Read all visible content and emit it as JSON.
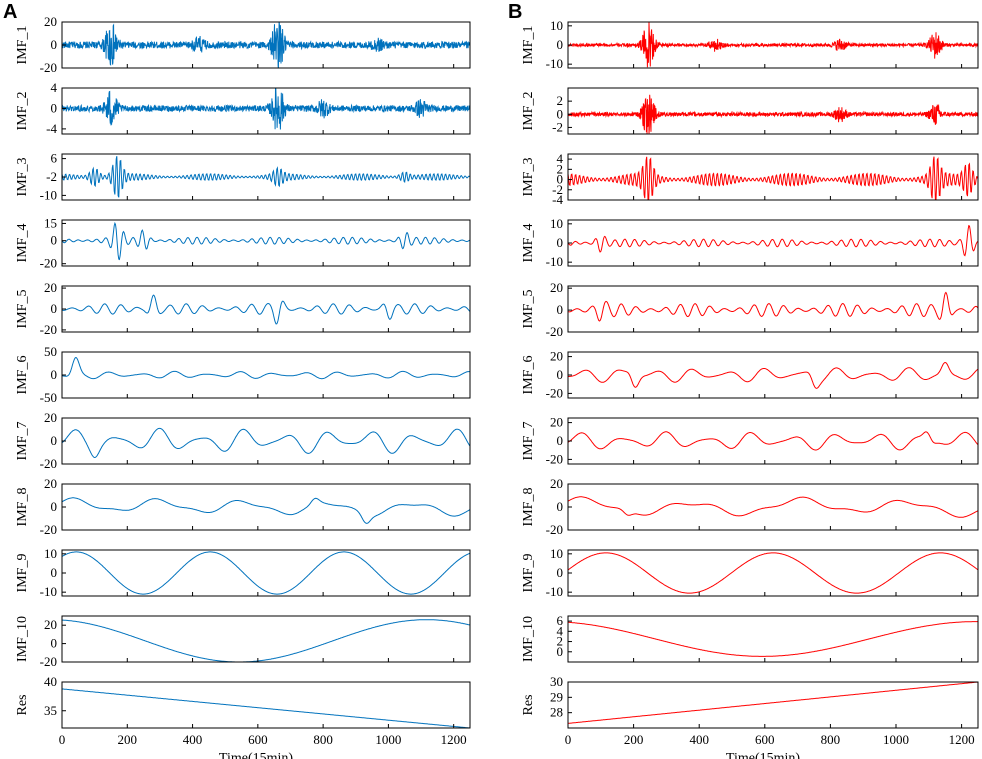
{
  "chart_data": [
    {
      "panel": "A",
      "type": "line",
      "color": "#0072BD",
      "xlabel": "Time(15min)",
      "xlim": [
        0,
        1250
      ],
      "xticks": [
        0,
        200,
        400,
        600,
        800,
        1000,
        1200
      ],
      "series": [
        {
          "name": "IMF_1",
          "ylim": [
            -20,
            20
          ],
          "yticks": [
            -20,
            0,
            20
          ],
          "kind": "noise",
          "amp": 3,
          "bursts": [
            [
              150,
              18
            ],
            [
              662,
              22
            ],
            [
              420,
              5
            ],
            [
              970,
              4
            ]
          ]
        },
        {
          "name": "IMF_2",
          "ylim": [
            -5,
            4
          ],
          "yticks": [
            -4,
            0,
            4
          ],
          "kind": "noise",
          "amp": 0.6,
          "bursts": [
            [
              150,
              3.5
            ],
            [
              662,
              4.5
            ],
            [
              800,
              1.5
            ],
            [
              1100,
              1.5
            ]
          ]
        },
        {
          "name": "IMF_3",
          "ylim": [
            -12,
            8
          ],
          "yticks": [
            -10,
            -2,
            6
          ],
          "kind": "osc",
          "period": 12,
          "amp": 1.5,
          "base": -2,
          "bursts": [
            [
              170,
              9
            ],
            [
              100,
              4
            ],
            [
              662,
              3
            ],
            [
              1050,
              2
            ]
          ]
        },
        {
          "name": "IMF_4",
          "ylim": [
            -22,
            18
          ],
          "yticks": [
            -20,
            0,
            15
          ],
          "kind": "osc",
          "period": 28,
          "amp": 3,
          "bursts": [
            [
              170,
              15
            ],
            [
              250,
              8
            ],
            [
              1050,
              6
            ]
          ]
        },
        {
          "name": "IMF_5",
          "ylim": [
            -22,
            22
          ],
          "yticks": [
            -20,
            0,
            20
          ],
          "kind": "osc",
          "period": 50,
          "amp": 5,
          "bursts": [
            [
              280,
              12
            ],
            [
              662,
              12
            ],
            [
              1000,
              8
            ]
          ]
        },
        {
          "name": "IMF_6",
          "ylim": [
            -50,
            50
          ],
          "yticks": [
            -50,
            0,
            50
          ],
          "kind": "osc",
          "period": 100,
          "amp": 8,
          "bursts": [
            [
              40,
              35
            ]
          ]
        },
        {
          "name": "IMF_7",
          "ylim": [
            -20,
            20
          ],
          "yticks": [
            -20,
            0,
            20
          ],
          "kind": "osc",
          "period": 130,
          "amp": 11,
          "bursts": [
            [
              100,
              5
            ]
          ]
        },
        {
          "name": "IMF_8",
          "ylim": [
            -20,
            20
          ],
          "yticks": [
            -20,
            0,
            20
          ],
          "kind": "osc",
          "period": 260,
          "amp": 8,
          "bursts": [
            [
              930,
              8
            ],
            [
              770,
              8
            ]
          ]
        },
        {
          "name": "IMF_9",
          "ylim": [
            -12,
            12
          ],
          "yticks": [
            -10,
            0,
            10
          ],
          "kind": "sine",
          "period": 410,
          "amp": 11,
          "phase": 0.9
        },
        {
          "name": "IMF_10",
          "ylim": [
            -20,
            30
          ],
          "yticks": [
            -20,
            0,
            20
          ],
          "kind": "sine",
          "period": 1150,
          "amp": 23,
          "phase": 1.75,
          "offset": 3
        },
        {
          "name": "Res",
          "ylim": [
            32,
            40
          ],
          "yticks": [
            35,
            40
          ],
          "kind": "linear",
          "start": 38.8,
          "end": 32
        }
      ]
    },
    {
      "panel": "B",
      "type": "line",
      "color": "#FF0000",
      "xlabel": "Time(15min)",
      "xlim": [
        0,
        1250
      ],
      "xticks": [
        0,
        200,
        400,
        600,
        800,
        1000,
        1200
      ],
      "series": [
        {
          "name": "IMF_1",
          "ylim": [
            -12,
            12
          ],
          "yticks": [
            -10,
            0,
            10
          ],
          "kind": "noise",
          "amp": 0.8,
          "bursts": [
            [
              245,
              12
            ],
            [
              1120,
              7
            ],
            [
              450,
              3
            ],
            [
              830,
              3
            ]
          ]
        },
        {
          "name": "IMF_2",
          "ylim": [
            -3,
            4
          ],
          "yticks": [
            -2,
            0,
            2
          ],
          "kind": "noise",
          "amp": 0.3,
          "bursts": [
            [
              245,
              3.5
            ],
            [
              1120,
              1.5
            ],
            [
              830,
              1
            ]
          ]
        },
        {
          "name": "IMF_3",
          "ylim": [
            -4,
            5
          ],
          "yticks": [
            -4,
            -2,
            0,
            2,
            4
          ],
          "kind": "osc",
          "period": 12,
          "amp": 1.3,
          "bursts": [
            [
              245,
              4
            ],
            [
              1120,
              4
            ],
            [
              1220,
              3
            ]
          ]
        },
        {
          "name": "IMF_4",
          "ylim": [
            -12,
            12
          ],
          "yticks": [
            -10,
            0,
            10
          ],
          "kind": "osc",
          "period": 30,
          "amp": 2,
          "bursts": [
            [
              1220,
              9
            ],
            [
              100,
              4
            ]
          ]
        },
        {
          "name": "IMF_5",
          "ylim": [
            -20,
            22
          ],
          "yticks": [
            -20,
            0,
            20
          ],
          "kind": "osc",
          "period": 45,
          "amp": 6,
          "bursts": [
            [
              1150,
              14
            ],
            [
              100,
              6
            ]
          ]
        },
        {
          "name": "IMF_6",
          "ylim": [
            -25,
            25
          ],
          "yticks": [
            -20,
            0,
            20
          ],
          "kind": "osc",
          "period": 110,
          "amp": 8,
          "bursts": [
            [
              200,
              15
            ],
            [
              750,
              12
            ],
            [
              1150,
              12
            ]
          ]
        },
        {
          "name": "IMF_7",
          "ylim": [
            -25,
            25
          ],
          "yticks": [
            -20,
            0,
            20
          ],
          "kind": "osc",
          "period": 130,
          "amp": 10,
          "bursts": [
            [
              1100,
              12
            ]
          ]
        },
        {
          "name": "IMF_8",
          "ylim": [
            -20,
            20
          ],
          "yticks": [
            -20,
            0,
            20
          ],
          "kind": "osc",
          "period": 330,
          "amp": 9,
          "bursts": [
            [
              180,
              5
            ]
          ]
        },
        {
          "name": "IMF_9",
          "ylim": [
            -12,
            12
          ],
          "yticks": [
            -10,
            0,
            10
          ],
          "kind": "sine",
          "period": 510,
          "amp": 10.5,
          "phase": 0.15
        },
        {
          "name": "IMF_10",
          "ylim": [
            -2,
            7
          ],
          "yticks": [
            0,
            2,
            4,
            6
          ],
          "kind": "sine",
          "period": 1300,
          "amp": 3.4,
          "phase": 1.85,
          "offset": 2.5
        },
        {
          "name": "Res",
          "ylim": [
            27,
            30
          ],
          "yticks": [
            28,
            29,
            30
          ],
          "kind": "linear",
          "start": 27.3,
          "end": 30
        }
      ]
    }
  ]
}
